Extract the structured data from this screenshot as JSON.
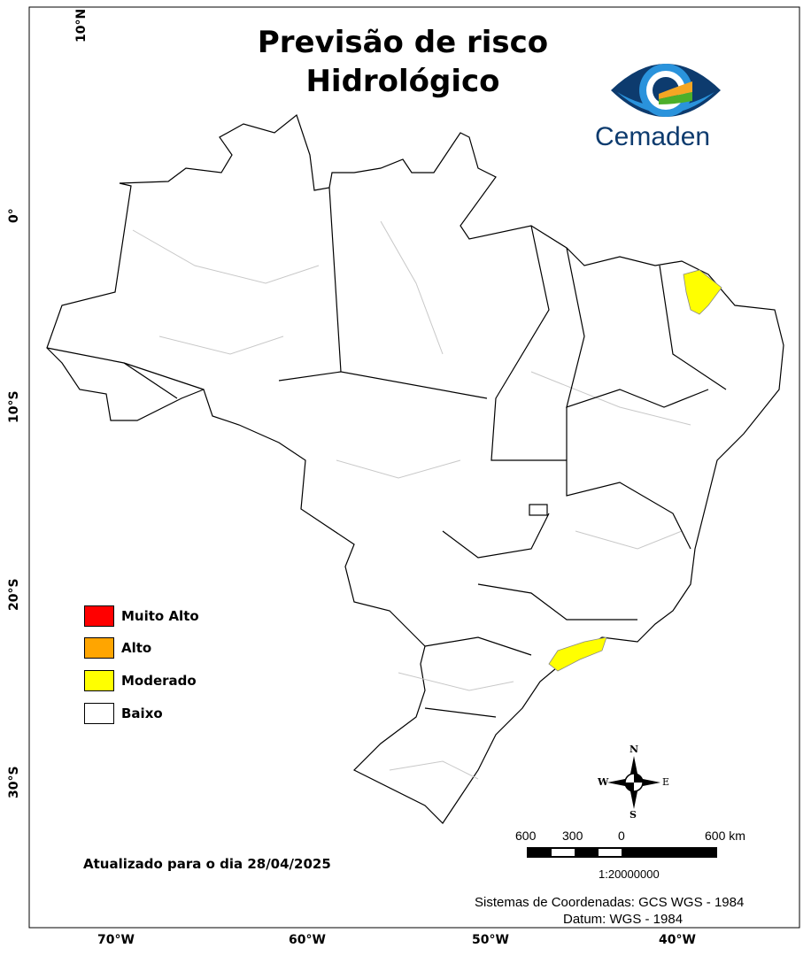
{
  "title_line1": "Previsão de risco",
  "title_line2": "Hidrológico",
  "logo": {
    "text": "Cemaden",
    "colors": [
      "#0d3b6e",
      "#2a93dc",
      "#f5a623",
      "#4caf2a"
    ]
  },
  "axes": {
    "lon_ticks": [
      "70°W",
      "60°W",
      "50°W",
      "40°W"
    ],
    "lat_ticks": [
      "10°N",
      "0°",
      "10°S",
      "20°S",
      "30°S"
    ]
  },
  "legend": [
    {
      "label": "Muito Alto",
      "color": "#ff0000"
    },
    {
      "label": "Alto",
      "color": "#ffa500"
    },
    {
      "label": "Moderado",
      "color": "#ffff00"
    },
    {
      "label": "Baixo",
      "color": "#ffffff"
    }
  ],
  "highlighted_areas": [
    {
      "region": "Ceará north",
      "level": "Moderado"
    },
    {
      "region": "São Paulo / Rio coast",
      "level": "Moderado"
    }
  ],
  "updated": "Atualizado para o dia 28/04/2025",
  "compass": {
    "n": "N",
    "s": "S",
    "e": "E",
    "w": "W"
  },
  "scale": {
    "labels": [
      "600",
      "300",
      "0",
      "600 km"
    ],
    "ratio": "1:20000000"
  },
  "crs": "Sistemas de Coordenadas: GCS WGS - 1984",
  "datum": "Datum: WGS - 1984"
}
